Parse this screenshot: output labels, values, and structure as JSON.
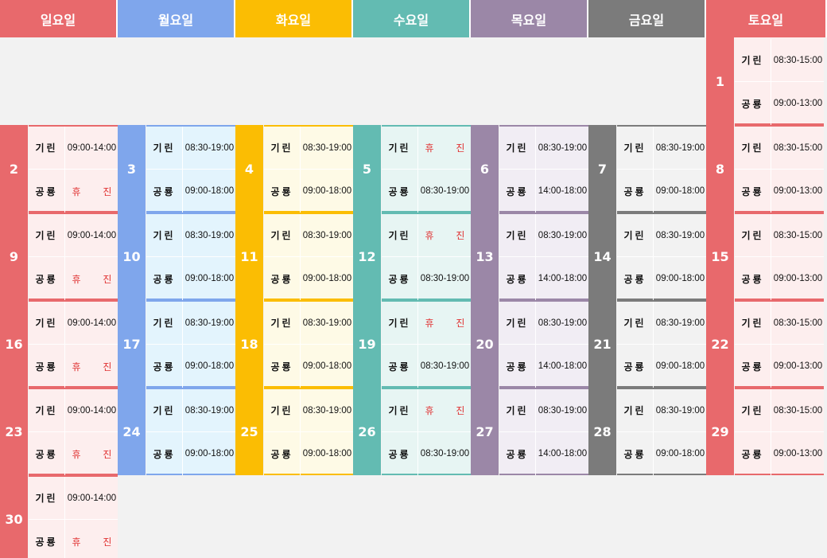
{
  "days": [
    {
      "label": "일요일",
      "color": "#e8696c",
      "tint": "#fdeeee"
    },
    {
      "label": "월요일",
      "color": "#7fa6ec",
      "tint": "#e3f4fd"
    },
    {
      "label": "화요일",
      "color": "#fbbd03",
      "tint": "#fefae6"
    },
    {
      "label": "수요일",
      "color": "#63bbb2",
      "tint": "#e7f5f3"
    },
    {
      "label": "목요일",
      "color": "#9b87a7",
      "tint": "#f1edf4"
    },
    {
      "label": "금요일",
      "color": "#7b7b7b",
      "tint": "#f2f2f2"
    },
    {
      "label": "토요일",
      "color": "#e8696c",
      "tint": "#fdeeee"
    }
  ],
  "weeks": [
    [
      null,
      null,
      null,
      null,
      null,
      null,
      {
        "date": "1",
        "slots": [
          {
            "who": "기린",
            "time": "08:30-15:00"
          },
          {
            "who": "공룡",
            "time": "09:00-13:00"
          }
        ]
      }
    ],
    [
      {
        "date": "2",
        "slots": [
          {
            "who": "기린",
            "time": "09:00-14:00"
          },
          {
            "who": "공룡",
            "time": "휴 진",
            "off": true
          }
        ]
      },
      {
        "date": "3",
        "slots": [
          {
            "who": "기린",
            "time": "08:30-19:00"
          },
          {
            "who": "공룡",
            "time": "09:00-18:00"
          }
        ]
      },
      {
        "date": "4",
        "slots": [
          {
            "who": "기린",
            "time": "08:30-19:00"
          },
          {
            "who": "공룡",
            "time": "09:00-18:00"
          }
        ]
      },
      {
        "date": "5",
        "slots": [
          {
            "who": "기린",
            "time": "휴 진",
            "off": true
          },
          {
            "who": "공룡",
            "time": "08:30-19:00"
          }
        ]
      },
      {
        "date": "6",
        "slots": [
          {
            "who": "기린",
            "time": "08:30-19:00"
          },
          {
            "who": "공룡",
            "time": "14:00-18:00"
          }
        ]
      },
      {
        "date": "7",
        "slots": [
          {
            "who": "기린",
            "time": "08:30-19:00"
          },
          {
            "who": "공룡",
            "time": "09:00-18:00"
          }
        ]
      },
      {
        "date": "8",
        "slots": [
          {
            "who": "기린",
            "time": "08:30-15:00"
          },
          {
            "who": "공룡",
            "time": "09:00-13:00"
          }
        ]
      }
    ],
    [
      {
        "date": "9",
        "slots": [
          {
            "who": "기린",
            "time": "09:00-14:00"
          },
          {
            "who": "공룡",
            "time": "휴 진",
            "off": true
          }
        ]
      },
      {
        "date": "10",
        "slots": [
          {
            "who": "기린",
            "time": "08:30-19:00"
          },
          {
            "who": "공룡",
            "time": "09:00-18:00"
          }
        ]
      },
      {
        "date": "11",
        "slots": [
          {
            "who": "기린",
            "time": "08:30-19:00"
          },
          {
            "who": "공룡",
            "time": "09:00-18:00"
          }
        ]
      },
      {
        "date": "12",
        "slots": [
          {
            "who": "기린",
            "time": "휴 진",
            "off": true
          },
          {
            "who": "공룡",
            "time": "08:30-19:00"
          }
        ]
      },
      {
        "date": "13",
        "slots": [
          {
            "who": "기린",
            "time": "08:30-19:00"
          },
          {
            "who": "공룡",
            "time": "14:00-18:00"
          }
        ]
      },
      {
        "date": "14",
        "slots": [
          {
            "who": "기린",
            "time": "08:30-19:00"
          },
          {
            "who": "공룡",
            "time": "09:00-18:00"
          }
        ]
      },
      {
        "date": "15",
        "slots": [
          {
            "who": "기린",
            "time": "08:30-15:00"
          },
          {
            "who": "공룡",
            "time": "09:00-13:00"
          }
        ]
      }
    ],
    [
      {
        "date": "16",
        "slots": [
          {
            "who": "기린",
            "time": "09:00-14:00"
          },
          {
            "who": "공룡",
            "time": "휴 진",
            "off": true
          }
        ]
      },
      {
        "date": "17",
        "slots": [
          {
            "who": "기린",
            "time": "08:30-19:00"
          },
          {
            "who": "공룡",
            "time": "09:00-18:00"
          }
        ]
      },
      {
        "date": "18",
        "slots": [
          {
            "who": "기린",
            "time": "08:30-19:00"
          },
          {
            "who": "공룡",
            "time": "09:00-18:00"
          }
        ]
      },
      {
        "date": "19",
        "slots": [
          {
            "who": "기린",
            "time": "휴 진",
            "off": true
          },
          {
            "who": "공룡",
            "time": "08:30-19:00"
          }
        ]
      },
      {
        "date": "20",
        "slots": [
          {
            "who": "기린",
            "time": "08:30-19:00"
          },
          {
            "who": "공룡",
            "time": "14:00-18:00"
          }
        ]
      },
      {
        "date": "21",
        "slots": [
          {
            "who": "기린",
            "time": "08:30-19:00"
          },
          {
            "who": "공룡",
            "time": "09:00-18:00"
          }
        ]
      },
      {
        "date": "22",
        "slots": [
          {
            "who": "기린",
            "time": "08:30-15:00"
          },
          {
            "who": "공룡",
            "time": "09:00-13:00"
          }
        ]
      }
    ],
    [
      {
        "date": "23",
        "slots": [
          {
            "who": "기린",
            "time": "09:00-14:00"
          },
          {
            "who": "공룡",
            "time": "휴 진",
            "off": true
          }
        ]
      },
      {
        "date": "24",
        "slots": [
          {
            "who": "기린",
            "time": "08:30-19:00"
          },
          {
            "who": "공룡",
            "time": "09:00-18:00"
          }
        ]
      },
      {
        "date": "25",
        "slots": [
          {
            "who": "기린",
            "time": "08:30-19:00"
          },
          {
            "who": "공룡",
            "time": "09:00-18:00"
          }
        ]
      },
      {
        "date": "26",
        "slots": [
          {
            "who": "기린",
            "time": "휴 진",
            "off": true
          },
          {
            "who": "공룡",
            "time": "08:30-19:00"
          }
        ]
      },
      {
        "date": "27",
        "slots": [
          {
            "who": "기린",
            "time": "08:30-19:00"
          },
          {
            "who": "공룡",
            "time": "14:00-18:00"
          }
        ]
      },
      {
        "date": "28",
        "slots": [
          {
            "who": "기린",
            "time": "08:30-19:00"
          },
          {
            "who": "공룡",
            "time": "09:00-18:00"
          }
        ]
      },
      {
        "date": "29",
        "slots": [
          {
            "who": "기린",
            "time": "08:30-15:00"
          },
          {
            "who": "공룡",
            "time": "09:00-13:00"
          }
        ]
      }
    ],
    [
      {
        "date": "30",
        "slots": [
          {
            "who": "기린",
            "time": "09:00-14:00"
          },
          {
            "who": "공룡",
            "time": "휴 진",
            "off": true
          }
        ]
      },
      null,
      null,
      null,
      null,
      null,
      null
    ]
  ]
}
